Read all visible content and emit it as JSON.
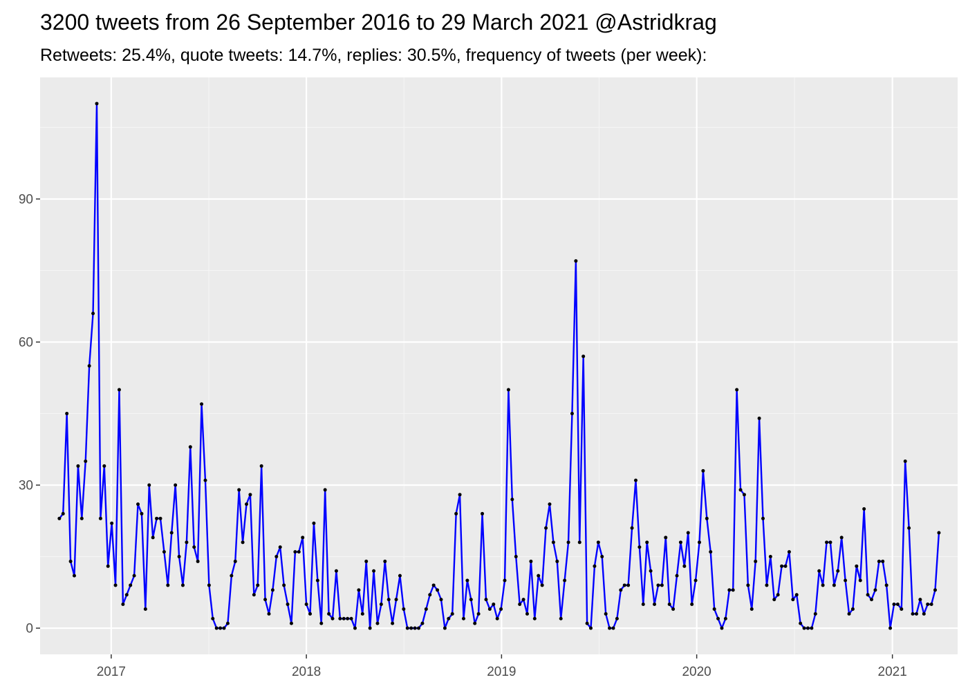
{
  "chart_data": {
    "type": "line",
    "title": "3200 tweets from 26 September 2016 to 29 March 2021 @Astridkrag",
    "subtitle": "Retweets: 25.4%, quote tweets: 14.7%, replies: 30.5%, frequency of tweets (per week):",
    "xlabel": "",
    "ylabel": "",
    "x_start": "2016-09-26",
    "x_end": "2021-03-29",
    "x_interval": "1 week",
    "xlim": [
      "2016-08-21",
      "2021-05-03"
    ],
    "ylim": [
      -5.5,
      115.5
    ],
    "x_ticks": [
      {
        "date": "2017-01-01",
        "label": "2017"
      },
      {
        "date": "2018-01-01",
        "label": "2018"
      },
      {
        "date": "2019-01-01",
        "label": "2019"
      },
      {
        "date": "2020-01-01",
        "label": "2020"
      },
      {
        "date": "2021-01-01",
        "label": "2021"
      }
    ],
    "y_ticks": [
      {
        "value": 0,
        "label": "0"
      },
      {
        "value": 30,
        "label": "30"
      },
      {
        "value": 60,
        "label": "60"
      },
      {
        "value": 90,
        "label": "90"
      }
    ],
    "grid": true,
    "legend": "none",
    "series": [
      {
        "values": [
          23,
          24,
          45,
          14,
          11,
          34,
          23,
          35,
          55,
          66,
          110,
          23,
          34,
          13,
          22,
          9,
          50,
          5,
          7,
          9,
          11,
          26,
          24,
          4,
          30,
          19,
          23,
          23,
          16,
          9,
          20,
          30,
          15,
          9,
          18,
          38,
          17,
          14,
          47,
          31,
          9,
          2,
          0,
          0,
          0,
          1,
          11,
          14,
          29,
          18,
          26,
          28,
          7,
          9,
          34,
          6,
          3,
          8,
          15,
          17,
          9,
          5,
          1,
          16,
          16,
          19,
          5,
          3,
          22,
          10,
          1,
          29,
          3,
          2,
          12,
          2,
          2,
          2,
          2,
          0,
          8,
          3,
          14,
          0,
          12,
          1,
          5,
          14,
          6,
          1,
          6,
          11,
          4,
          0,
          0,
          0,
          0,
          1,
          4,
          7,
          9,
          8,
          6,
          0,
          2,
          3,
          24,
          28,
          2,
          10,
          6,
          1,
          3,
          24,
          6,
          4,
          5,
          2,
          4,
          10,
          50,
          27,
          15,
          5,
          6,
          3,
          14,
          2,
          11,
          9,
          21,
          26,
          18,
          14,
          2,
          10,
          18,
          45,
          77,
          18,
          57,
          1,
          0,
          13,
          18,
          15,
          3,
          0,
          0,
          2,
          8,
          9,
          9,
          21,
          31,
          17,
          5,
          18,
          12,
          5,
          9,
          9,
          19,
          5,
          4,
          11,
          18,
          13,
          20,
          5,
          10,
          18,
          33,
          23,
          16,
          4,
          2,
          0,
          2,
          8,
          8,
          50,
          29,
          28,
          9,
          4,
          14,
          44,
          23,
          9,
          15,
          6,
          7,
          13,
          13,
          16,
          6,
          7,
          1,
          0,
          0,
          0,
          3,
          12,
          9,
          18,
          18,
          9,
          12,
          19,
          10,
          3,
          4,
          13,
          10,
          25,
          7,
          6,
          8,
          14,
          14,
          9,
          0,
          5,
          5,
          4,
          35,
          21,
          3,
          3,
          6,
          3,
          5,
          5,
          8,
          20
        ]
      }
    ],
    "colors": {
      "line": "#0000ff",
      "point": "#000000",
      "panel": "#ebebeb",
      "grid_major": "#ffffff",
      "grid_minor": "#f5f5f5",
      "tick": "#333333"
    }
  }
}
